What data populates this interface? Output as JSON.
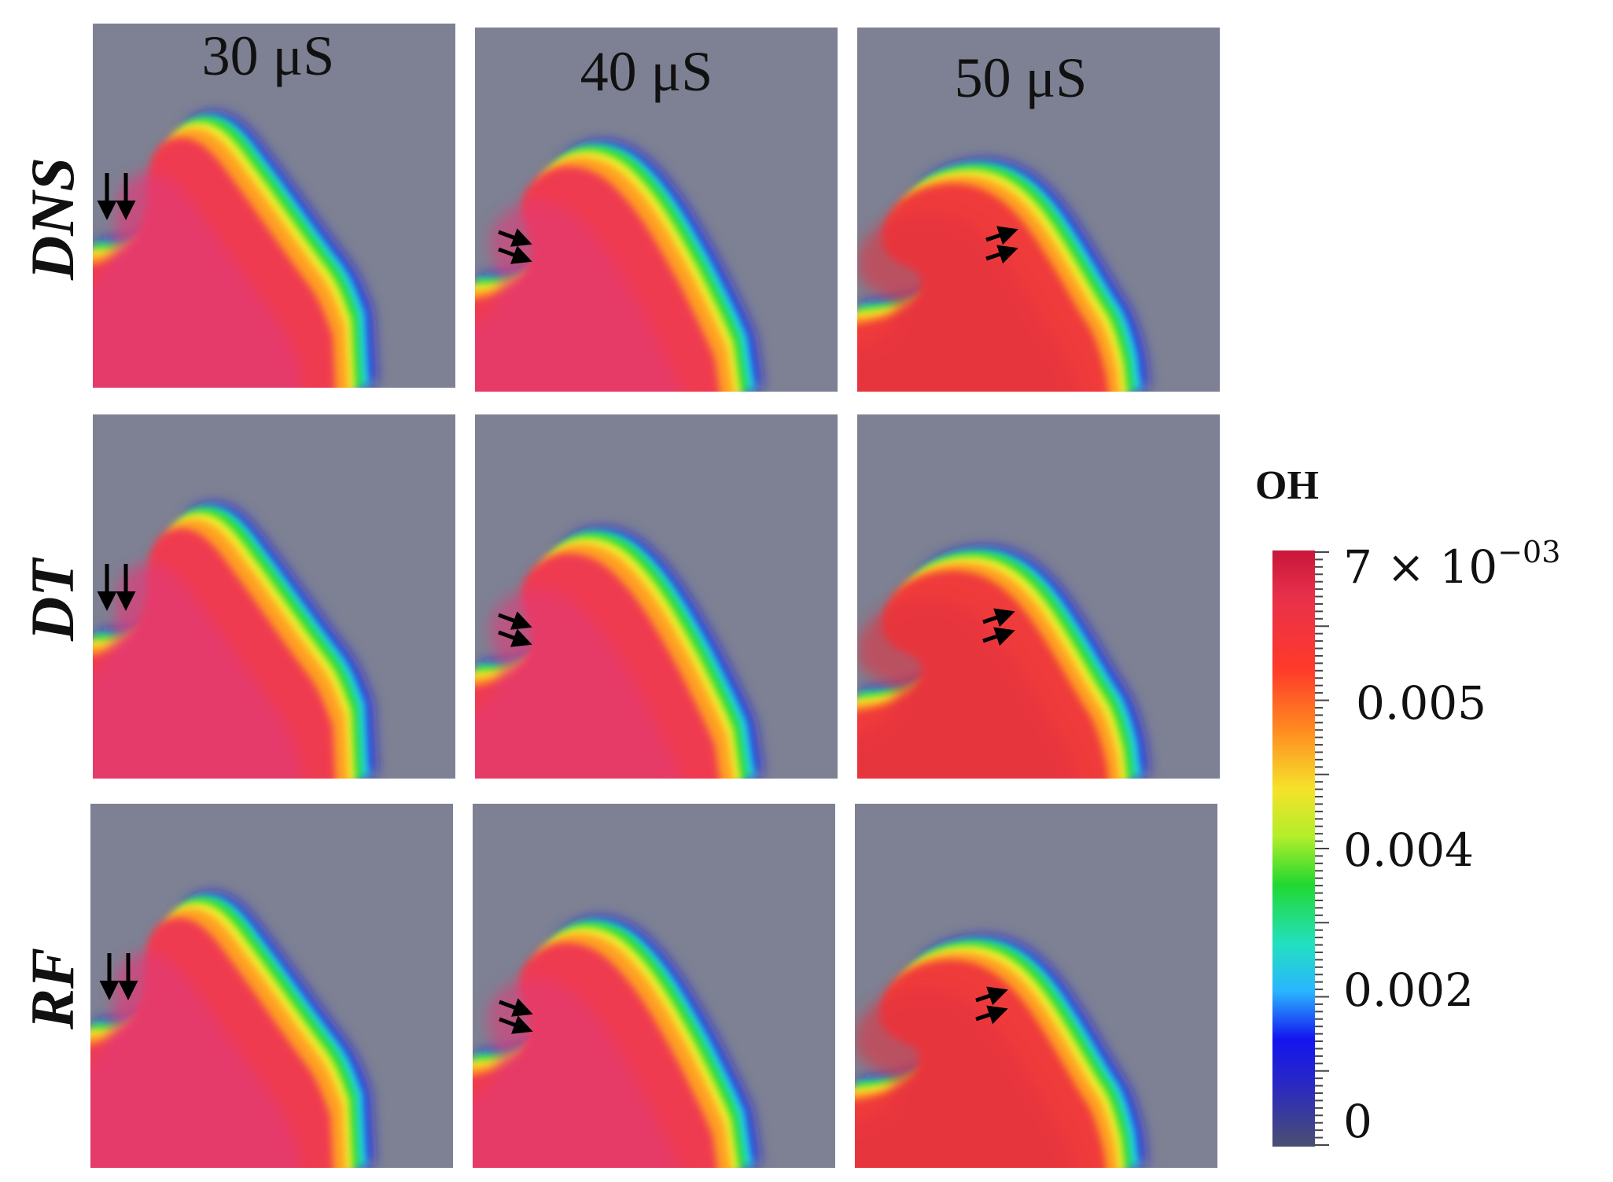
{
  "columns": [
    "30 μS",
    "40 μS",
    "50 μS"
  ],
  "rows": [
    "DNS",
    "DT",
    "RF"
  ],
  "colorbar": {
    "title": "OH",
    "max_label_prefix": "7 × 10",
    "max_label_exp": "−03",
    "ticks": [
      "0.005",
      "0.004",
      "0.002",
      "0"
    ]
  },
  "colors": {
    "background_field": "#7d8193",
    "max": "#c8163a",
    "red": "#ef3a3a",
    "orange": "#ffa020",
    "yellow": "#f2f22e",
    "green": "#22d830",
    "cyan": "#22d8e8",
    "blue": "#1414f0",
    "min": "#4a4f70"
  }
}
